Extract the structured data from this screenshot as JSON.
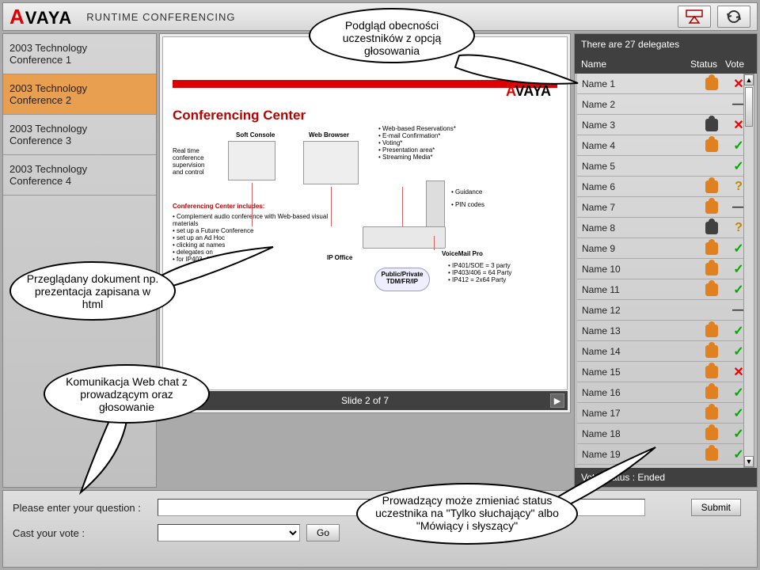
{
  "topbar": {
    "logo_text": "AVAYA",
    "title": "RUNTIME CONFERENCING"
  },
  "conferences": [
    {
      "line1": "2003 Technology",
      "line2": "Conference 1",
      "active": false
    },
    {
      "line1": "2003 Technology",
      "line2": "Conference 2",
      "active": true
    },
    {
      "line1": "2003 Technology",
      "line2": "Conference 3",
      "active": false
    },
    {
      "line1": "2003 Technology",
      "line2": "Conference 4",
      "active": false
    }
  ],
  "slide": {
    "brand": "AVAYA",
    "title": "Conferencing Center",
    "soft_console": "Soft Console",
    "web_browser": "Web Browser",
    "realtime": "Real time conference supervision and control",
    "features": [
      "Web-based Reservations*",
      "E-mail Confirmation*",
      "Voting*",
      "Presentation area*",
      "Streaming Media*"
    ],
    "guidance": "Guidance",
    "pin": "PIN codes",
    "includes_title": "Conferencing Center includes:",
    "includes": [
      "Complement audio conference with Web-based visual materials",
      "set up a Future Conference",
      "set up an Ad Hoc",
      "clicking at names",
      "delegates on",
      "for IP403, 406 and 412"
    ],
    "ip_office": "IP Office",
    "public_private": "Public/Private TDM/FR/IP",
    "voicemail": "VoiceMail Pro",
    "ip_specs": [
      "IP401/SOE = 3 party",
      "IP403/406 = 64 Party",
      "IP412 = 2x64 Party"
    ],
    "nav_label": "Slide 2 of 7"
  },
  "delegates": {
    "header": "There are 27 delegates",
    "col_name": "Name",
    "col_status": "Status",
    "col_vote": "Vote",
    "rows": [
      {
        "name": "Name 1",
        "status": "orange",
        "vote": "x"
      },
      {
        "name": "Name 2",
        "status": "",
        "vote": "dash"
      },
      {
        "name": "Name 3",
        "status": "dark",
        "vote": "x"
      },
      {
        "name": "Name 4",
        "status": "orange",
        "vote": "check"
      },
      {
        "name": "Name 5",
        "status": "",
        "vote": "check"
      },
      {
        "name": "Name 6",
        "status": "orange",
        "vote": "q"
      },
      {
        "name": "Name 7",
        "status": "orange",
        "vote": "dash"
      },
      {
        "name": "Name 8",
        "status": "dark",
        "vote": "q"
      },
      {
        "name": "Name 9",
        "status": "orange",
        "vote": "check"
      },
      {
        "name": "Name 10",
        "status": "orange",
        "vote": "check"
      },
      {
        "name": "Name 11",
        "status": "orange",
        "vote": "check"
      },
      {
        "name": "Name 12",
        "status": "",
        "vote": "dash"
      },
      {
        "name": "Name 13",
        "status": "orange",
        "vote": "check"
      },
      {
        "name": "Name 14",
        "status": "orange",
        "vote": "check"
      },
      {
        "name": "Name 15",
        "status": "orange",
        "vote": "x"
      },
      {
        "name": "Name 16",
        "status": "orange",
        "vote": "check"
      },
      {
        "name": "Name 17",
        "status": "orange",
        "vote": "check"
      },
      {
        "name": "Name 18",
        "status": "orange",
        "vote": "check"
      },
      {
        "name": "Name 19",
        "status": "orange",
        "vote": "check"
      }
    ],
    "vote_status": "Vote Status : Ended"
  },
  "bottom": {
    "question_label": "Please enter your question :",
    "vote_label": "Cast your vote :",
    "go_label": "Go",
    "submit_label": "Submit"
  },
  "callouts": {
    "c1": "Podgląd obecności uczestników z opcją głosowania",
    "c2": "Przeglądany dokument np. prezentacja zapisana w html",
    "c3": "Komunikacja Web chat z prowadzącym oraz głosowanie",
    "c4": "Prowadzący może zmieniać status uczestnika na \"Tylko słuchający\" albo \"Mówiący i słyszący\""
  },
  "colors": {
    "accent_red": "#d00020",
    "active_bg": "#e8a050",
    "dark_bar": "#404040"
  }
}
